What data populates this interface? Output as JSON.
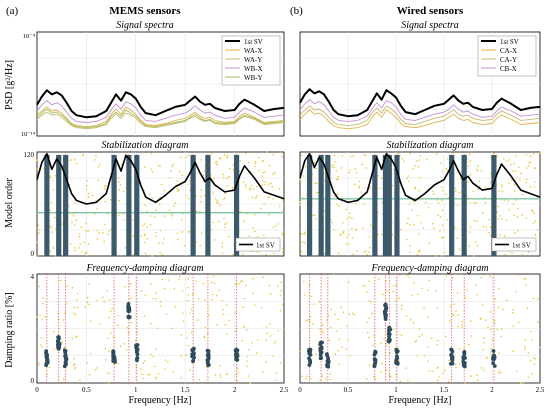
{
  "figure": {
    "left_label": "(a)",
    "left_title": "MEMS sensors",
    "right_label": "(b)",
    "right_title": "Wired sensors",
    "row_titles": [
      "Signal spectra",
      "Stabilization diagram",
      "Frequency-damping diagram"
    ],
    "y_labels": [
      "PSD [g²/Hz]",
      "Model order",
      "Damping ratio [%]"
    ],
    "x_label": "Frequency [Hz]"
  },
  "chart_data": [
    {
      "type": "line",
      "panel": "a-spectra",
      "title": "Signal spectra",
      "ylabel": "PSD [g²/Hz]",
      "ytick_labels": [
        "10⁻⁴",
        "10⁻¹⁴"
      ],
      "xlim": [
        0,
        2.5
      ],
      "ylim_log10": [
        -14,
        -4
      ],
      "x": [
        0,
        0.05,
        0.1,
        0.15,
        0.2,
        0.25,
        0.3,
        0.35,
        0.4,
        0.5,
        0.6,
        0.7,
        0.75,
        0.8,
        0.85,
        0.9,
        0.95,
        1.0,
        1.05,
        1.1,
        1.2,
        1.3,
        1.4,
        1.5,
        1.55,
        1.6,
        1.65,
        1.7,
        1.75,
        1.8,
        1.9,
        2.0,
        2.05,
        2.1,
        2.2,
        2.3,
        2.4,
        2.5
      ],
      "series": [
        {
          "name": "1st SV",
          "color": "#000000",
          "values": [
            -11.0,
            -10.2,
            -9.6,
            -10.0,
            -9.8,
            -10.1,
            -10.8,
            -11.6,
            -12.0,
            -12.2,
            -12.1,
            -11.6,
            -10.8,
            -10.0,
            -10.6,
            -9.8,
            -10.0,
            -10.4,
            -11.2,
            -11.8,
            -12.0,
            -11.6,
            -11.2,
            -11.0,
            -10.6,
            -10.2,
            -10.7,
            -11.0,
            -10.9,
            -11.3,
            -11.6,
            -11.5,
            -10.9,
            -10.5,
            -11.0,
            -11.6,
            -11.4,
            -11.3
          ]
        },
        {
          "name": "WA-X",
          "color": "#e3b14a",
          "values": [
            -12.0,
            -11.6,
            -11.2,
            -11.6,
            -11.5,
            -11.8,
            -12.3,
            -12.8,
            -13.0,
            -13.1,
            -13.0,
            -12.6,
            -11.9,
            -11.4,
            -11.9,
            -11.2,
            -11.5,
            -11.9,
            -12.5,
            -12.9,
            -13.0,
            -12.8,
            -12.5,
            -12.3,
            -12.0,
            -11.7,
            -12.1,
            -12.3,
            -12.2,
            -12.5,
            -12.7,
            -12.6,
            -12.1,
            -11.8,
            -12.2,
            -12.7,
            -12.6,
            -12.5
          ]
        },
        {
          "name": "WA-Y",
          "color": "#c7b96e",
          "values": [
            -12.4,
            -12.0,
            -11.7,
            -12.0,
            -11.9,
            -12.2,
            -12.6,
            -13.0,
            -13.2,
            -13.3,
            -13.2,
            -12.9,
            -12.3,
            -11.9,
            -12.3,
            -11.8,
            -12.0,
            -12.3,
            -12.8,
            -13.1,
            -13.2,
            -13.0,
            -12.8,
            -12.6,
            -12.3,
            -12.1,
            -12.4,
            -12.6,
            -12.5,
            -12.8,
            -12.9,
            -12.8,
            -12.4,
            -12.1,
            -12.4,
            -12.9,
            -12.8,
            -12.7
          ]
        },
        {
          "name": "WB-X",
          "color": "#c48fd6",
          "values": [
            -11.6,
            -11.0,
            -10.6,
            -11.0,
            -10.8,
            -11.1,
            -11.7,
            -12.3,
            -12.6,
            -12.7,
            -12.6,
            -12.2,
            -11.5,
            -10.9,
            -11.4,
            -10.7,
            -10.9,
            -11.3,
            -12.0,
            -12.5,
            -12.6,
            -12.3,
            -12.0,
            -11.8,
            -11.5,
            -11.1,
            -11.5,
            -11.8,
            -11.7,
            -12.0,
            -12.3,
            -12.2,
            -11.7,
            -11.3,
            -11.7,
            -12.2,
            -12.1,
            -12.0
          ]
        },
        {
          "name": "WB-Y",
          "color": "#9fbf5f",
          "values": [
            -12.2,
            -11.8,
            -11.4,
            -11.8,
            -11.7,
            -12.0,
            -12.4,
            -12.9,
            -13.1,
            -13.2,
            -13.1,
            -12.8,
            -12.1,
            -11.7,
            -12.1,
            -11.5,
            -11.8,
            -12.1,
            -12.6,
            -13.0,
            -13.1,
            -12.9,
            -12.7,
            -12.5,
            -12.2,
            -11.9,
            -12.3,
            -12.5,
            -12.4,
            -12.7,
            -12.8,
            -12.7,
            -12.3,
            -12.0,
            -12.3,
            -12.8,
            -12.7,
            -12.6
          ]
        }
      ]
    },
    {
      "type": "line",
      "panel": "b-spectra",
      "title": "Signal spectra",
      "xlim": [
        0,
        2.5
      ],
      "ylim_log10": [
        -14,
        -4
      ],
      "x": [
        0,
        0.05,
        0.1,
        0.15,
        0.2,
        0.25,
        0.3,
        0.35,
        0.4,
        0.5,
        0.6,
        0.7,
        0.75,
        0.8,
        0.85,
        0.9,
        0.95,
        1.0,
        1.05,
        1.1,
        1.2,
        1.3,
        1.4,
        1.5,
        1.55,
        1.6,
        1.65,
        1.7,
        1.75,
        1.8,
        1.9,
        2.0,
        2.05,
        2.1,
        2.2,
        2.3,
        2.4,
        2.5
      ],
      "series": [
        {
          "name": "1st SV",
          "color": "#000000",
          "values": [
            -10.8,
            -10.0,
            -9.5,
            -9.9,
            -9.7,
            -10.0,
            -10.7,
            -11.5,
            -11.9,
            -12.1,
            -12.0,
            -11.5,
            -10.7,
            -9.9,
            -10.5,
            -9.6,
            -9.9,
            -10.3,
            -11.1,
            -11.7,
            -11.9,
            -11.5,
            -11.1,
            -10.9,
            -10.5,
            -10.1,
            -10.6,
            -10.9,
            -10.8,
            -11.2,
            -11.5,
            -11.4,
            -10.8,
            -10.4,
            -10.9,
            -11.5,
            -11.3,
            -11.2
          ]
        },
        {
          "name": "CA-X",
          "color": "#e3b14a",
          "values": [
            -12.4,
            -11.9,
            -11.5,
            -11.9,
            -11.8,
            -12.1,
            -12.6,
            -13.0,
            -13.2,
            -13.3,
            -13.2,
            -12.9,
            -12.2,
            -11.7,
            -12.2,
            -11.5,
            -11.8,
            -12.2,
            -12.8,
            -13.1,
            -13.2,
            -13.0,
            -12.7,
            -12.5,
            -12.2,
            -11.9,
            -12.3,
            -12.5,
            -12.4,
            -12.7,
            -12.9,
            -12.8,
            -12.3,
            -12.0,
            -12.4,
            -12.9,
            -12.8,
            -12.7
          ]
        },
        {
          "name": "CA-Y",
          "color": "#c7b96e",
          "values": [
            -12.0,
            -11.5,
            -11.1,
            -11.5,
            -11.4,
            -11.7,
            -12.2,
            -12.7,
            -12.9,
            -13.0,
            -12.9,
            -12.5,
            -11.8,
            -11.3,
            -11.8,
            -11.1,
            -11.4,
            -11.8,
            -12.4,
            -12.8,
            -12.9,
            -12.6,
            -12.3,
            -12.1,
            -11.8,
            -11.5,
            -11.9,
            -12.1,
            -12.0,
            -12.3,
            -12.5,
            -12.4,
            -11.9,
            -11.6,
            -12.0,
            -12.5,
            -12.4,
            -12.3
          ]
        },
        {
          "name": "CB-X",
          "color": "#c48fd6",
          "values": [
            -11.5,
            -10.9,
            -10.5,
            -10.9,
            -10.7,
            -11.0,
            -11.6,
            -12.2,
            -12.5,
            -12.6,
            -12.5,
            -12.1,
            -11.4,
            -10.8,
            -11.3,
            -10.6,
            -10.8,
            -11.2,
            -11.9,
            -12.4,
            -12.5,
            -12.2,
            -11.9,
            -11.7,
            -11.4,
            -11.0,
            -11.4,
            -11.7,
            -11.6,
            -11.9,
            -12.2,
            -12.1,
            -11.6,
            -11.2,
            -11.6,
            -12.1,
            -12.0,
            -11.9
          ]
        }
      ]
    },
    {
      "type": "scatter",
      "panel": "a-stabilization",
      "title": "Stabilization diagram",
      "ylabel": "Model order",
      "xlim": [
        0,
        2.5
      ],
      "ylim": [
        0,
        120
      ],
      "ytick_labels": [
        "0",
        "120"
      ],
      "stable_frequencies": [
        0.1,
        0.22,
        0.29,
        0.78,
        0.93,
        1.01,
        1.58,
        1.73,
        2.02
      ],
      "highlight_order": 50,
      "legend": "1st SV",
      "sv_curve": {
        "x": [
          0,
          0.05,
          0.1,
          0.15,
          0.2,
          0.25,
          0.3,
          0.35,
          0.4,
          0.5,
          0.6,
          0.7,
          0.75,
          0.8,
          0.85,
          0.9,
          0.95,
          1.0,
          1.05,
          1.1,
          1.2,
          1.3,
          1.4,
          1.5,
          1.55,
          1.6,
          1.65,
          1.7,
          1.75,
          1.8,
          1.9,
          2.0,
          2.05,
          2.1,
          2.2,
          2.3,
          2.4,
          2.5
        ],
        "values": [
          88,
          108,
          118,
          100,
          112,
          104,
          88,
          72,
          64,
          60,
          62,
          72,
          92,
          112,
          98,
          116,
          110,
          100,
          82,
          68,
          62,
          70,
          80,
          86,
          96,
          108,
          96,
          86,
          90,
          82,
          74,
          76,
          92,
          104,
          90,
          74,
          70,
          66
        ]
      }
    },
    {
      "type": "scatter",
      "panel": "b-stabilization",
      "title": "Stabilization diagram",
      "xlim": [
        0,
        2.5
      ],
      "ylim": [
        0,
        120
      ],
      "stable_frequencies": [
        0.1,
        0.22,
        0.29,
        0.78,
        0.89,
        0.93,
        1.01,
        1.58,
        1.71,
        2.02
      ],
      "highlight_order": 66,
      "legend": "1st SV",
      "sv_curve": {
        "x": [
          0,
          0.05,
          0.1,
          0.15,
          0.2,
          0.25,
          0.3,
          0.35,
          0.4,
          0.5,
          0.6,
          0.7,
          0.75,
          0.8,
          0.85,
          0.9,
          0.95,
          1.0,
          1.05,
          1.1,
          1.2,
          1.3,
          1.4,
          1.5,
          1.55,
          1.6,
          1.65,
          1.7,
          1.75,
          1.8,
          1.9,
          2.0,
          2.05,
          2.1,
          2.2,
          2.3,
          2.4,
          2.5
        ],
        "values": [
          90,
          110,
          118,
          102,
          114,
          106,
          90,
          74,
          66,
          62,
          64,
          74,
          94,
          114,
          100,
          118,
          112,
          102,
          84,
          70,
          64,
          72,
          82,
          88,
          98,
          110,
          98,
          88,
          92,
          84,
          76,
          78,
          94,
          106,
          92,
          76,
          72,
          68
        ]
      }
    },
    {
      "type": "scatter",
      "panel": "a-frequency-damping",
      "title": "Frequency-damping diagram",
      "ylabel": "Damping ratio [%]",
      "xlabel": "Frequency [Hz]",
      "xlim": [
        0,
        2.5
      ],
      "ylim": [
        0,
        4
      ],
      "ytick_labels": [
        "0",
        "4"
      ],
      "xtick_labels": [
        "0",
        "0.5",
        "1",
        "1.5",
        "2",
        "2.5"
      ],
      "vlines": [
        0.1,
        0.22,
        0.29,
        0.78,
        0.93,
        1.01,
        1.58,
        1.73,
        2.02
      ],
      "clusters": [
        [
          0.1,
          0.95
        ],
        [
          0.22,
          1.5
        ],
        [
          0.29,
          0.9
        ],
        [
          0.78,
          0.95
        ],
        [
          0.93,
          2.6
        ],
        [
          1.01,
          1.1
        ],
        [
          1.58,
          1.0
        ],
        [
          1.73,
          0.9
        ],
        [
          2.02,
          0.95
        ]
      ]
    },
    {
      "type": "scatter",
      "panel": "b-frequency-damping",
      "title": "Frequency-damping diagram",
      "xlabel": "Frequency [Hz]",
      "xlim": [
        0,
        2.5
      ],
      "ylim": [
        0,
        4
      ],
      "xtick_labels": [
        "0",
        "0.5",
        "1",
        "1.5",
        "2",
        "2.5"
      ],
      "vlines": [
        0.1,
        0.22,
        0.29,
        0.78,
        0.89,
        0.93,
        1.01,
        1.58,
        1.71,
        2.02
      ],
      "clusters": [
        [
          0.1,
          0.95
        ],
        [
          0.22,
          1.2
        ],
        [
          0.29,
          0.85
        ],
        [
          0.78,
          0.9
        ],
        [
          0.89,
          2.6
        ],
        [
          0.93,
          1.8
        ],
        [
          1.01,
          1.0
        ],
        [
          1.58,
          0.95
        ],
        [
          1.71,
          0.9
        ],
        [
          2.02,
          0.9
        ]
      ]
    }
  ]
}
